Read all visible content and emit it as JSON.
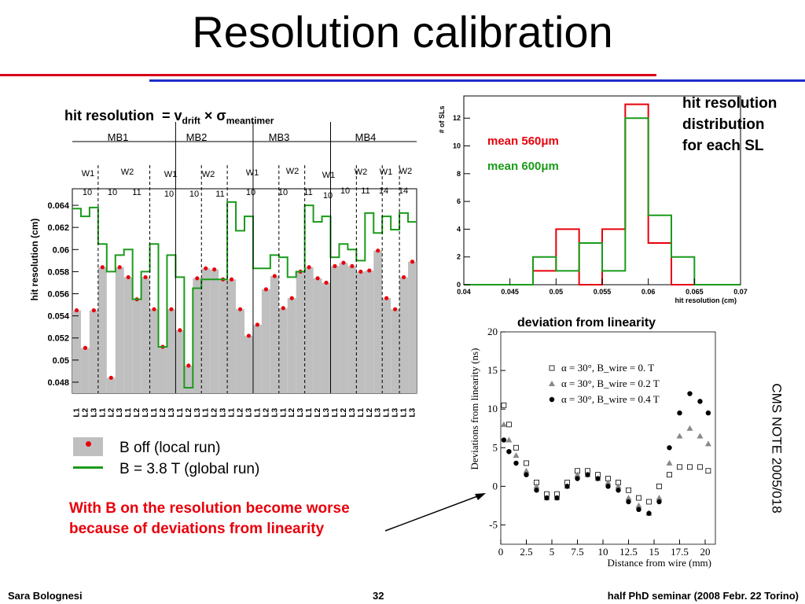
{
  "slide": {
    "title": "Resolution calibration",
    "footer_left": "Sara Bolognesi",
    "footer_page": "32",
    "footer_right": "half PhD seminar (2008 Febr. 22 Torino)",
    "red_note_line1": "With B on the resolution become worse",
    "red_note_line2": "because of deviations from linearity",
    "cms_note": "CMS NOTE 2005/018",
    "legend_b_off": "B off (local run)",
    "legend_b_on": "B = 3.8 T (global run)",
    "hist_caption_line1": "hit resolution",
    "hist_caption_line2": "distribution",
    "hist_caption_line3": "for each SL",
    "deviation_caption": "deviation from linearity",
    "formula_prefix": "hit resolution",
    "formula_eq": "= v",
    "formula_sub1": "drift",
    "formula_times": "× σ",
    "formula_sub2": "meantimer",
    "colors": {
      "rule_red": "#d9001b",
      "rule_blue": "#1f2ecc",
      "bar_gray": "#bfbfbf",
      "line_green": "#1a9b1a",
      "dot_red": "#e8000b",
      "note_red": "#e8000b"
    }
  },
  "chart_data": [
    {
      "type": "bar",
      "ylabel": "hit resolution (cm)",
      "ylim": [
        0.047,
        0.0655
      ],
      "yticks": [
        "0.048",
        "0.05",
        "0.052",
        "0.054",
        "0.056",
        "0.058",
        "0.06",
        "0.062",
        "0.064"
      ],
      "categories": [
        "SL1",
        "SL2",
        "SL3",
        "SL1",
        "SL2",
        "SL3",
        "SL1",
        "SL2",
        "SL3",
        "SL1",
        "SL2",
        "SL3",
        "SL1",
        "SL2",
        "SL3",
        "SL1",
        "SL2",
        "SL3",
        "SL1",
        "SL2",
        "SL3",
        "SL1",
        "SL2",
        "SL3",
        "SL1",
        "SL2",
        "SL3",
        "SL1",
        "SL2",
        "SL3",
        "SL1",
        "SL2",
        "SL3",
        "SL1",
        "SL2",
        "SL3",
        "SL1",
        "SL3",
        "SL1",
        "SL3"
      ],
      "group_labels": [
        "MB1",
        "MB2",
        "MB3",
        "MB4"
      ],
      "wheel_labels": [
        "W1",
        "W2",
        "W1",
        "W2",
        "W1",
        "W2",
        "W1",
        "W2",
        "W1",
        "W2"
      ],
      "sector_labels": [
        "10",
        "10",
        "11",
        "10",
        "10",
        "11",
        "10",
        "10",
        "11",
        "10",
        "10",
        "11",
        "14",
        "14"
      ],
      "series": [
        {
          "name": "B off (local run)",
          "values": [
            0.0545,
            0.0511,
            0.0545,
            0.0584,
            0.0484,
            0.0584,
            0.0575,
            0.0555,
            0.0575,
            0.0546,
            0.0512,
            0.0546,
            0.0527,
            0.0495,
            0.0574,
            0.0583,
            0.0582,
            0.0573,
            0.0573,
            0.0546,
            0.0522,
            0.0532,
            0.0564,
            0.0576,
            0.0547,
            0.0556,
            0.058,
            0.0584,
            0.0574,
            0.057,
            0.0585,
            0.0588,
            0.0585,
            0.058,
            0.0581,
            0.0599,
            0.0556,
            0.0546,
            0.0575,
            0.0589
          ]
        },
        {
          "name": "B = 3.8 T (global run)",
          "values": [
            0.0637,
            0.063,
            0.0638,
            0.0605,
            0.058,
            0.0595,
            0.06,
            0.0555,
            0.058,
            0.0605,
            0.0512,
            0.0595,
            0.0575,
            0.0475,
            0.0565,
            0.0573,
            0.0573,
            0.0573,
            0.0643,
            0.0617,
            0.063,
            0.0583,
            0.0583,
            0.0595,
            0.0593,
            0.0575,
            0.058,
            0.064,
            0.0625,
            0.063,
            0.0593,
            0.0605,
            0.06,
            0.059,
            0.0633,
            0.0615,
            0.063,
            0.0618,
            0.0633,
            0.0625
          ]
        }
      ]
    },
    {
      "type": "bar",
      "xlabel": "hit resolution (cm)",
      "ylabel": "# of SLs",
      "xlim": [
        0.04,
        0.07
      ],
      "ylim": [
        0,
        13.6
      ],
      "xticks": [
        "0.04",
        "0.045",
        "0.05",
        "0.055",
        "0.06",
        "0.065",
        "0.07"
      ],
      "yticks": [
        "0",
        "2",
        "4",
        "6",
        "8",
        "10",
        "12"
      ],
      "bin_edges": [
        0.04,
        0.0425,
        0.045,
        0.0475,
        0.05,
        0.0525,
        0.055,
        0.0575,
        0.06,
        0.0625,
        0.065,
        0.0675,
        0.07
      ],
      "series": [
        {
          "name": "mean 560μm",
          "values": [
            0,
            0,
            0,
            1,
            4,
            0,
            4,
            13,
            3,
            0,
            0,
            0
          ]
        },
        {
          "name": "mean 600μm",
          "values": [
            0,
            0,
            0,
            2,
            1,
            3,
            1,
            12,
            5,
            2,
            0,
            0
          ]
        }
      ]
    },
    {
      "type": "scatter",
      "xlabel": "Distance from wire (mm)",
      "ylabel": "Deviations from linearity (ns)",
      "xlim": [
        0,
        21
      ],
      "ylim": [
        -7.5,
        20
      ],
      "xticks": [
        "0",
        "2.5",
        "5",
        "7.5",
        "10",
        "12.5",
        "15",
        "17.5",
        "20"
      ],
      "yticks": [
        "-5",
        "0",
        "5",
        "10",
        "15",
        "20"
      ],
      "series": [
        {
          "name": "α = 30°, B_wire = 0. T",
          "x": [
            0.3,
            0.8,
            1.5,
            2.5,
            3.5,
            4.5,
            5.5,
            6.5,
            7.5,
            8.5,
            9.5,
            10.5,
            11.5,
            12.5,
            13.5,
            14.5,
            15.5,
            16.5,
            17.5,
            18.5,
            19.5,
            20.3
          ],
          "y": [
            10.5,
            8,
            5,
            3,
            0.5,
            -1,
            -1,
            0.5,
            2,
            2,
            1.5,
            1,
            0.5,
            -0.5,
            -1.5,
            -2,
            0,
            1.5,
            2.5,
            2.5,
            2.5,
            2
          ]
        },
        {
          "name": "α = 30°, B_wire = 0.2 T",
          "x": [
            0.3,
            0.8,
            1.5,
            2.5,
            3.5,
            4.5,
            5.5,
            6.5,
            7.5,
            8.5,
            9.5,
            10.5,
            11.5,
            12.5,
            13.5,
            14.5,
            15.5,
            16.5,
            17.5,
            18.5,
            19.5,
            20.3
          ],
          "y": [
            8,
            6,
            4,
            2,
            0,
            -1.5,
            -1.5,
            0,
            1.5,
            1.5,
            1,
            0.5,
            0,
            -1.5,
            -2.5,
            -3.5,
            -1.5,
            3,
            6.5,
            7.5,
            6.5,
            5.5
          ]
        },
        {
          "name": "α = 30°, B_wire = 0.4 T",
          "x": [
            0.3,
            0.8,
            1.5,
            2.5,
            3.5,
            4.5,
            5.5,
            6.5,
            7.5,
            8.5,
            9.5,
            10.5,
            11.5,
            12.5,
            13.5,
            14.5,
            15.5,
            16.5,
            17.5,
            18.5,
            19.5,
            20.3
          ],
          "y": [
            6,
            4.5,
            3,
            1.5,
            -0.5,
            -1.5,
            -1.5,
            0,
            1,
            1.5,
            1,
            0,
            -0.5,
            -2,
            -3,
            -3.5,
            -2,
            5,
            9.5,
            12,
            11,
            9.5
          ]
        }
      ]
    }
  ]
}
